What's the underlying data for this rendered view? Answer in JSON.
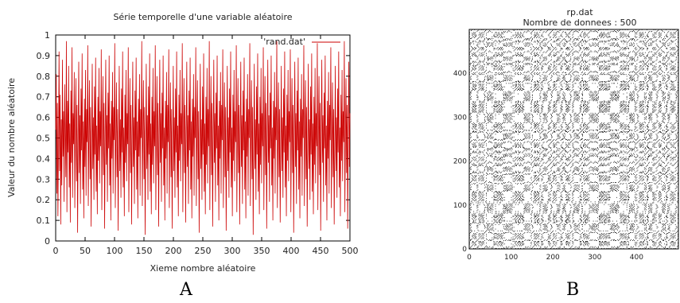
{
  "figure_labels": [
    "A",
    "B"
  ],
  "chart_data": [
    {
      "type": "line",
      "title": "Série temporelle d'une variable aléatoire",
      "xlabel": "Xieme nombre aléatoire",
      "ylabel": "Valeur du nombre aléatoire",
      "xlim": [
        0,
        500
      ],
      "ylim": [
        0,
        1
      ],
      "xticks": [
        0,
        50,
        100,
        150,
        200,
        250,
        300,
        350,
        400,
        450,
        500
      ],
      "yticks": [
        0,
        0.1,
        0.2,
        0.3,
        0.4,
        0.5,
        0.6,
        0.7,
        0.8,
        0.9,
        1
      ],
      "ytick_labels": [
        "0",
        "0.1",
        "0.2",
        "0.3",
        "0.4",
        "0.5",
        "0.6",
        "0.7",
        "0.8",
        "0.9",
        "1"
      ],
      "legend_position": "top-right",
      "grid": false,
      "series": [
        {
          "name": "'rand.dat'",
          "color": "#cc0000",
          "values": [
            0.54,
            0.81,
            0.23,
            0.67,
            0.12,
            0.45,
            0.92,
            0.34,
            0.71,
            0.08,
            0.59,
            0.27,
            0.88,
            0.41,
            0.63,
            0.19,
            0.76,
            0.52,
            0.31,
            0.97,
            0.14,
            0.68,
            0.43,
            0.85,
            0.26,
            0.57,
            0.09,
            0.73,
            0.38,
            0.94,
            0.21,
            0.62,
            0.47,
            0.82,
            0.16,
            0.55,
            0.79,
            0.29,
            0.66,
            0.04,
            0.51,
            0.87,
            0.33,
            0.61,
            0.18,
            0.74,
            0.44,
            0.91,
            0.25,
            0.58,
            0.11,
            0.69,
            0.36,
            0.83,
            0.22,
            0.64,
            0.48,
            0.95,
            0.17,
            0.53,
            0.78,
            0.3,
            0.65,
            0.07,
            0.49,
            0.86,
            0.35,
            0.6,
            0.2,
            0.75,
            0.42,
            0.89,
            0.24,
            0.56,
            0.13,
            0.7,
            0.39,
            0.84,
            0.28,
            0.63,
            0.46,
            0.93,
            0.15,
            0.54,
            0.8,
            0.32,
            0.67,
            0.06,
            0.5,
            0.88,
            0.37,
            0.61,
            0.19,
            0.72,
            0.45,
            0.9,
            0.27,
            0.57,
            0.1,
            0.68,
            0.4,
            0.82,
            0.23,
            0.65,
            0.49,
            0.96,
            0.16,
            0.52,
            0.77,
            0.31,
            0.64,
            0.05,
            0.48,
            0.85,
            0.34,
            0.59,
            0.21,
            0.74,
            0.43,
            0.92,
            0.26,
            0.55,
            0.12,
            0.71,
            0.38,
            0.83,
            0.29,
            0.62,
            0.47,
            0.94,
            0.14,
            0.53,
            0.79,
            0.33,
            0.66,
            0.08,
            0.51,
            0.87,
            0.36,
            0.6,
            0.18,
            0.73,
            0.44,
            0.89,
            0.25,
            0.58,
            0.11,
            0.69,
            0.41,
            0.81,
            0.22,
            0.64,
            0.5,
            0.97,
            0.17,
            0.56,
            0.78,
            0.3,
            0.65,
            0.03,
            0.47,
            0.86,
            0.35,
            0.61,
            0.2,
            0.75,
            0.42,
            0.91,
            0.24,
            0.57,
            0.13,
            0.7,
            0.37,
            0.84,
            0.28,
            0.63,
            0.46,
            0.95,
            0.15,
            0.54,
            0.8,
            0.32,
            0.67,
            0.07,
            0.5,
            0.88,
            0.38,
            0.62,
            0.19,
            0.72,
            0.45,
            0.9,
            0.27,
            0.55,
            0.1,
            0.68,
            0.4,
            0.82,
            0.23,
            0.66,
            0.48,
            0.93,
            0.16,
            0.52,
            0.77,
            0.31,
            0.64,
            0.06,
            0.49,
            0.85,
            0.34,
            0.6,
            0.21,
            0.74,
            0.43,
            0.92,
            0.26,
            0.56,
            0.12,
            0.71,
            0.39,
            0.83,
            0.29,
            0.62,
            0.47,
            0.96,
            0.14,
            0.53,
            0.79,
            0.33,
            0.66,
            0.09,
            0.51,
            0.87,
            0.36,
            0.61,
            0.18,
            0.73,
            0.44,
            0.89,
            0.25,
            0.58,
            0.11,
            0.69,
            0.41,
            0.81,
            0.22,
            0.65,
            0.5,
            0.94,
            0.17,
            0.55,
            0.78,
            0.3,
            0.63,
            0.04,
            0.48,
            0.86,
            0.35,
            0.59,
            0.2,
            0.75,
            0.42,
            0.91,
            0.24,
            0.57,
            0.13,
            0.7,
            0.37,
            0.84,
            0.28,
            0.64,
            0.46,
            0.97,
            0.15,
            0.54,
            0.8,
            0.32,
            0.67,
            0.07,
            0.5,
            0.88,
            0.38,
            0.62,
            0.19,
            0.72,
            0.45,
            0.9,
            0.27,
            0.56,
            0.1,
            0.68,
            0.4,
            0.82,
            0.23,
            0.66,
            0.49,
            0.93,
            0.16,
            0.52,
            0.77,
            0.31,
            0.65,
            0.05,
            0.47,
            0.85,
            0.34,
            0.6,
            0.21,
            0.74,
            0.43,
            0.92,
            0.26,
            0.55,
            0.12,
            0.71,
            0.39,
            0.83,
            0.29,
            0.63,
            0.48,
            0.95,
            0.14,
            0.53,
            0.79,
            0.33,
            0.66,
            0.08,
            0.51,
            0.87,
            0.36,
            0.61,
            0.18,
            0.73,
            0.44,
            0.89,
            0.25,
            0.58,
            0.11,
            0.69,
            0.41,
            0.81,
            0.22,
            0.64,
            0.5,
            0.96,
            0.17,
            0.56,
            0.78,
            0.3,
            0.65,
            0.03,
            0.48,
            0.86,
            0.35,
            0.59,
            0.2,
            0.75,
            0.42,
            0.91,
            0.24,
            0.57,
            0.13,
            0.7,
            0.37,
            0.84,
            0.28,
            0.62,
            0.46,
            0.94,
            0.15,
            0.54,
            0.8,
            0.32,
            0.67,
            0.06,
            0.5,
            0.88,
            0.38,
            0.61,
            0.19,
            0.72,
            0.45,
            0.9,
            0.27,
            0.55,
            0.1,
            0.68,
            0.4,
            0.82,
            0.23,
            0.65,
            0.49,
            0.97,
            0.16,
            0.52,
            0.77,
            0.31,
            0.64,
            0.09,
            0.47,
            0.85,
            0.34,
            0.6,
            0.21,
            0.74,
            0.43,
            0.92,
            0.26,
            0.56,
            0.12,
            0.71,
            0.39,
            0.83,
            0.29,
            0.63,
            0.48,
            0.93,
            0.14,
            0.53,
            0.79,
            0.33,
            0.66,
            0.04,
            0.51,
            0.87,
            0.36,
            0.62,
            0.18,
            0.73,
            0.44,
            0.89,
            0.25,
            0.58,
            0.11,
            0.69,
            0.41,
            0.81,
            0.22,
            0.64,
            0.5,
            0.95,
            0.17,
            0.55,
            0.78,
            0.3,
            0.65,
            0.07,
            0.48,
            0.86,
            0.35,
            0.59,
            0.2,
            0.75,
            0.42,
            0.91,
            0.24,
            0.57,
            0.13,
            0.7,
            0.37,
            0.84,
            0.28,
            0.62,
            0.46,
            0.96,
            0.15,
            0.54,
            0.8,
            0.32,
            0.67,
            0.05,
            0.5,
            0.88,
            0.38,
            0.61,
            0.19,
            0.72,
            0.45,
            0.9,
            0.27,
            0.56,
            0.1,
            0.68,
            0.4,
            0.82,
            0.23,
            0.66,
            0.49,
            0.94,
            0.16,
            0.52,
            0.77,
            0.31,
            0.64,
            0.08,
            0.47,
            0.85,
            0.34,
            0.6,
            0.21,
            0.74,
            0.43,
            0.92,
            0.26,
            0.55,
            0.12,
            0.71,
            0.39,
            0.83,
            0.29,
            0.63,
            0.48,
            0.97,
            0.14,
            0.53,
            0.79,
            0.33,
            0.66,
            0.06,
            0.51,
            0.87,
            0.36,
            0.62
          ]
        }
      ]
    },
    {
      "type": "heatmap",
      "title": "rp.dat",
      "subtitle": "Nombre de donnees : 500",
      "xlim": [
        0,
        500
      ],
      "ylim": [
        0,
        500
      ],
      "xticks": [
        0,
        100,
        200,
        300,
        400
      ],
      "yticks": [
        0,
        100,
        200,
        300,
        400
      ],
      "n": 500,
      "threshold": 0.1,
      "color": "#000000",
      "grid": false
    }
  ]
}
